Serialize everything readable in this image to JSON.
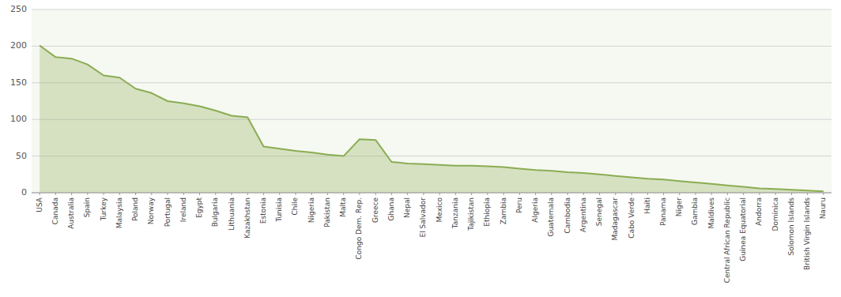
{
  "chart_data": {
    "type": "area",
    "categories": [
      "USA",
      "Canada",
      "Australia",
      "Spain",
      "Turkey",
      "Malaysia",
      "Poland",
      "Norway",
      "Portugal",
      "Ireland",
      "Egypt",
      "Bulgaria",
      "Lithuania",
      "Kazakhstan",
      "Estonia",
      "Tunisia",
      "Chile",
      "Nigeria",
      "Pakistan",
      "Malta",
      "Congo Dem. Rep.",
      "Greece",
      "Ghana",
      "Nepal",
      "El Salvador",
      "Mexico",
      "Tanzania",
      "Tajikistan",
      "Ethiopia",
      "Zambia",
      "Peru",
      "Algeria",
      "Guatemala",
      "Cambodia",
      "Argentina",
      "Senegal",
      "Madagascar",
      "Cabo Verde",
      "Haiti",
      "Panama",
      "Niger",
      "Gambia",
      "Maldives",
      "Central African Republic",
      "Guinea Equatorial",
      "Andorra",
      "Dominica",
      "Solomon Islands",
      "British Virgin Islands",
      "Nauru"
    ],
    "values": [
      201,
      185,
      183,
      175,
      160,
      157,
      142,
      136,
      125,
      122,
      118,
      112,
      105,
      103,
      63,
      60,
      57,
      55,
      52,
      50,
      73,
      72,
      42,
      40,
      39,
      38,
      37,
      37,
      36,
      35,
      33,
      31,
      30,
      28,
      27,
      25,
      23,
      21,
      19,
      18,
      16,
      14,
      12,
      10,
      8,
      6,
      5,
      4,
      3,
      2
    ],
    "color": "#8aad52",
    "ylim": [
      0,
      250
    ],
    "yticks": [
      0,
      50,
      100,
      150,
      200,
      250
    ],
    "grid": true
  }
}
